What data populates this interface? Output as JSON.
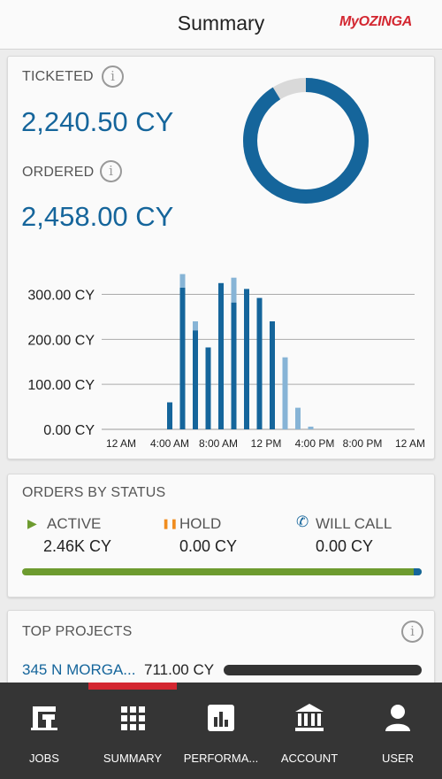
{
  "header": {
    "title": "Summary",
    "logo_text": "MyOZINGA"
  },
  "summary": {
    "ticketed_label": "TICKETED",
    "ticketed_value": "2,240.50 CY",
    "ordered_label": "ORDERED",
    "ordered_value": "2,458.00 CY",
    "info_glyph": "i"
  },
  "donut": {
    "ticketed": 2240.5,
    "ordered": 2458.0,
    "fill_color": "#15659b",
    "rest_color": "#d9d9d9"
  },
  "chart_data": {
    "type": "bar",
    "categories": [
      "12 AM",
      "1 AM",
      "2 AM",
      "3 AM",
      "4 AM",
      "5 AM",
      "6 AM",
      "7 AM",
      "8 AM",
      "9 AM",
      "10 AM",
      "11 AM",
      "12 PM",
      "1 PM",
      "2 PM",
      "3 PM",
      "4 PM",
      "5 PM",
      "6 PM",
      "7 PM",
      "8 PM",
      "9 PM",
      "10 PM",
      "11 PM"
    ],
    "x_tick_labels": [
      "12 AM",
      "4:00 AM",
      "8:00 AM",
      "12 PM",
      "4:00 PM",
      "8:00 PM",
      "12 AM"
    ],
    "y_tick_labels": [
      "0.00 CY",
      "100.00 CY",
      "200.00 CY",
      "300.00 CY"
    ],
    "ylim": [
      0,
      360
    ],
    "series": [
      {
        "values": [
          0,
          0,
          0,
          0,
          0,
          60,
          315,
          220,
          182,
          325,
          282,
          312,
          292,
          240,
          0,
          0,
          0,
          0,
          0,
          0,
          0,
          0,
          0,
          0
        ]
      },
      {
        "values": [
          0,
          0,
          0,
          0,
          0,
          0,
          30,
          20,
          0,
          0,
          55,
          0,
          0,
          0,
          160,
          48,
          6,
          0,
          0,
          0,
          0,
          0,
          0,
          0
        ]
      }
    ],
    "colors": [
      "#15659b",
      "#87b4d6"
    ],
    "grid": true
  },
  "status": {
    "title": "ORDERS BY STATUS",
    "items": [
      {
        "label": "ACTIVE",
        "value": "2.46K CY",
        "icon": "play-icon",
        "color": "#6d9b2f",
        "glyph": "▶"
      },
      {
        "label": "HOLD",
        "value": "0.00 CY",
        "icon": "pause-icon",
        "color": "#f08c1e",
        "glyph": "❚❚"
      },
      {
        "label": "WILL CALL",
        "value": "0.00 CY",
        "icon": "phone-icon",
        "color": "#15659b",
        "glyph": "✆"
      }
    ],
    "active_fraction": 0.98
  },
  "projects": {
    "title": "TOP PROJECTS",
    "items": [
      {
        "name": "345 N MORGA...",
        "value": "711.00 CY"
      }
    ]
  },
  "nav": {
    "items": [
      {
        "label": "JOBS",
        "icon": "jobs-icon"
      },
      {
        "label": "SUMMARY",
        "icon": "grid-icon",
        "active": true
      },
      {
        "label": "PERFORMA...",
        "icon": "bar-chart-icon"
      },
      {
        "label": "ACCOUNT",
        "icon": "bank-icon"
      },
      {
        "label": "USER",
        "icon": "user-icon"
      }
    ]
  }
}
